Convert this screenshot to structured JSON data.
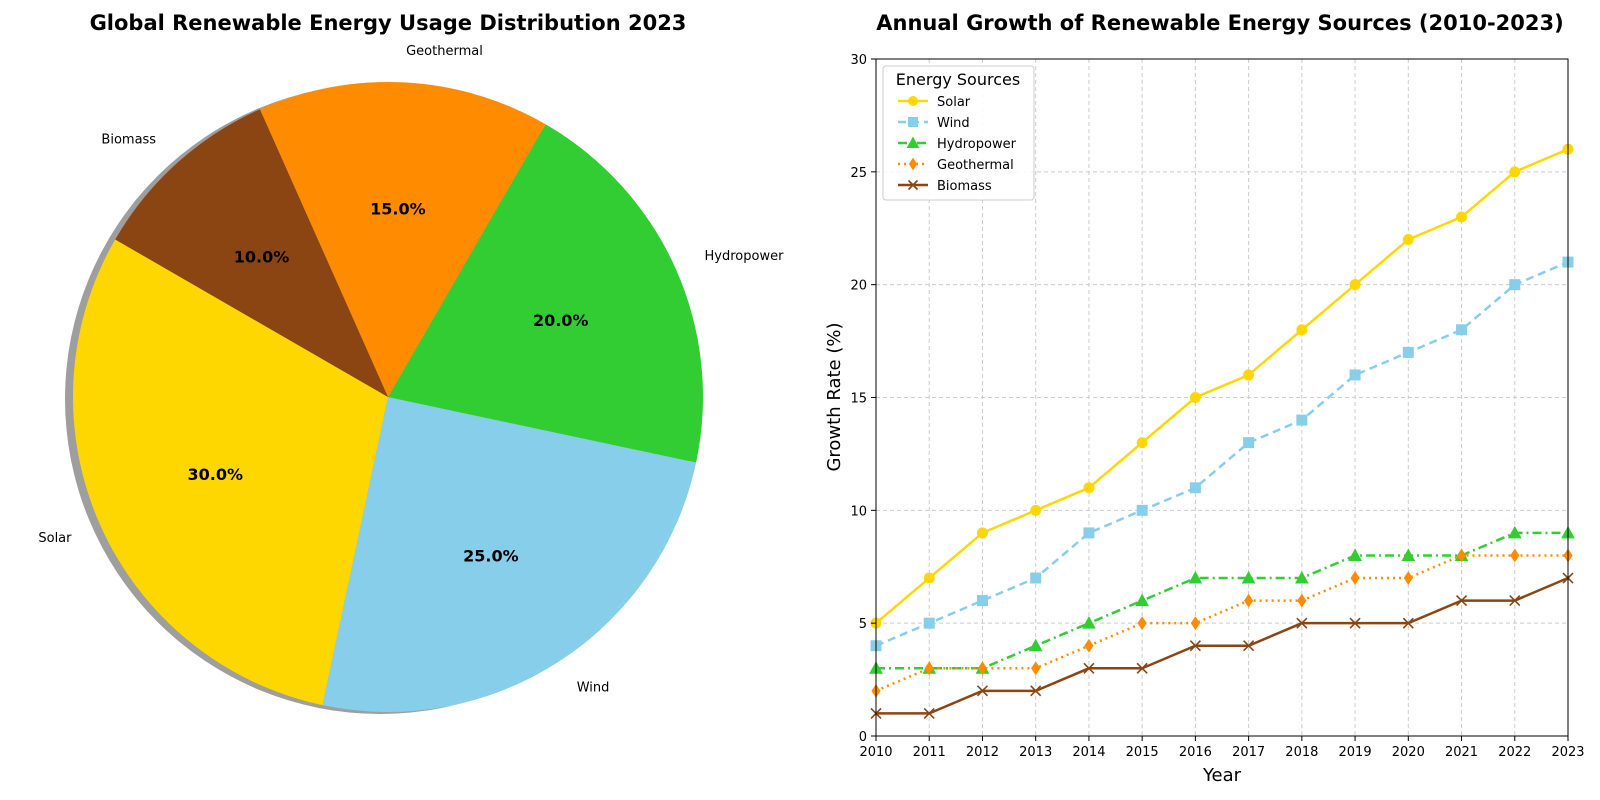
{
  "chart_data": [
    {
      "type": "pie",
      "title": "Global Renewable Energy Usage Distribution 2023",
      "labels": [
        "Solar",
        "Wind",
        "Hydropower",
        "Geothermal",
        "Biomass"
      ],
      "values": [
        30,
        25,
        20,
        15,
        10
      ],
      "percent_labels": [
        "30.0%",
        "25.0%",
        "20.0%",
        "15.0%",
        "10.0%"
      ],
      "colors": [
        "#FFD700",
        "#87CEEB",
        "#32CD32",
        "#FF8C00",
        "#8B4513"
      ],
      "start_angle_deg": 150,
      "shadow": true
    },
    {
      "type": "line",
      "title": "Annual Growth of Renewable Energy Sources (2010-2023)",
      "xlabel": "Year",
      "ylabel": "Growth Rate (%)",
      "x": [
        2010,
        2011,
        2012,
        2013,
        2014,
        2015,
        2016,
        2017,
        2018,
        2019,
        2020,
        2021,
        2022,
        2023
      ],
      "xlim": [
        2010,
        2023
      ],
      "ylim": [
        0,
        30
      ],
      "yticks": [
        0,
        5,
        10,
        15,
        20,
        25,
        30
      ],
      "grid": true,
      "legend_title": "Energy Sources",
      "legend_position": "upper-left",
      "series": [
        {
          "name": "Solar",
          "color": "#FFD700",
          "linestyle": "solid",
          "marker": "circle",
          "values": [
            5,
            7,
            9,
            10,
            11,
            13,
            15,
            16,
            18,
            20,
            22,
            23,
            25,
            26
          ]
        },
        {
          "name": "Wind",
          "color": "#87CEEB",
          "linestyle": "dashed",
          "marker": "square",
          "values": [
            4,
            5,
            6,
            7,
            9,
            10,
            11,
            13,
            14,
            16,
            17,
            18,
            20,
            21
          ]
        },
        {
          "name": "Hydropower",
          "color": "#32CD32",
          "linestyle": "dashdot",
          "marker": "triangle",
          "values": [
            3,
            3,
            3,
            4,
            5,
            6,
            7,
            7,
            7,
            8,
            8,
            8,
            9,
            9
          ]
        },
        {
          "name": "Geothermal",
          "color": "#FF8C00",
          "linestyle": "dotted",
          "marker": "diamond",
          "values": [
            2,
            3,
            3,
            3,
            4,
            5,
            5,
            6,
            6,
            7,
            7,
            8,
            8,
            8
          ]
        },
        {
          "name": "Biomass",
          "color": "#8B4513",
          "linestyle": "solid",
          "marker": "x",
          "values": [
            1,
            1,
            2,
            2,
            3,
            3,
            4,
            4,
            5,
            5,
            5,
            6,
            6,
            7
          ]
        }
      ]
    }
  ]
}
